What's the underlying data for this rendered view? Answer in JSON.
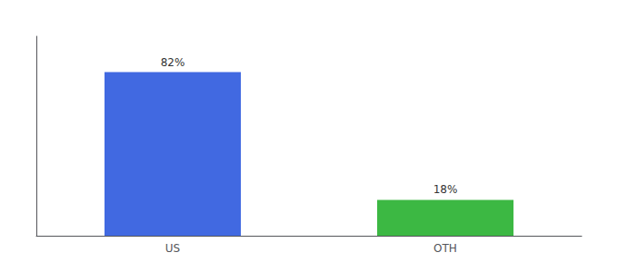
{
  "chart_data": {
    "type": "bar",
    "categories": [
      "US",
      "OTH"
    ],
    "values": [
      82,
      18
    ],
    "value_labels": [
      "82%",
      "18%"
    ],
    "colors": [
      "#4169e1",
      "#3cb843"
    ],
    "ylim": [
      0,
      100
    ],
    "data_labels": true,
    "tick_labels": "x",
    "grid": false
  }
}
